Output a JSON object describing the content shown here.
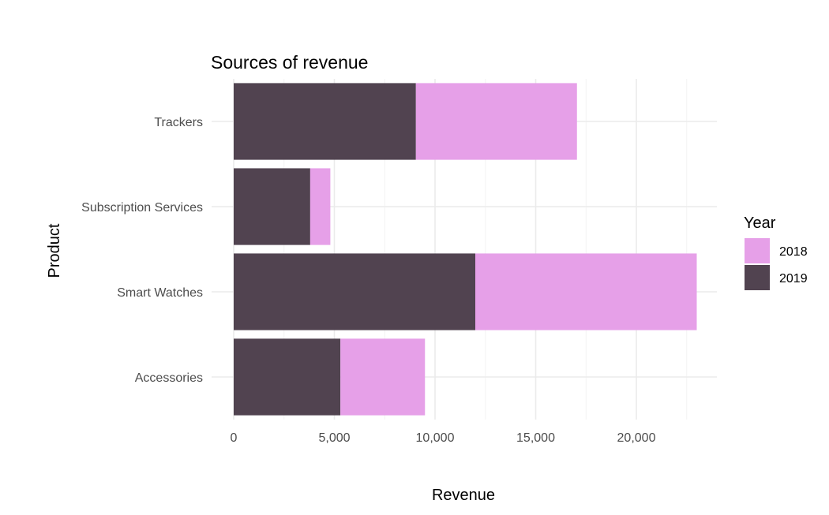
{
  "chart_data": {
    "type": "bar",
    "orientation": "horizontal",
    "stacked": true,
    "title": "Sources of revenue",
    "xlabel": "Revenue",
    "ylabel": "Product",
    "categories": [
      "Accessories",
      "Smart Watches",
      "Subscription Services",
      "Trackers"
    ],
    "series": [
      {
        "name": "2019",
        "color": "#514350",
        "values": [
          5300,
          12000,
          3800,
          9050
        ]
      },
      {
        "name": "2018",
        "color": "#e6a0e8",
        "values": [
          4200,
          11000,
          1000,
          8000
        ]
      }
    ],
    "xlim": [
      0,
      24000
    ],
    "xticks": [
      0,
      5000,
      10000,
      15000,
      20000
    ],
    "xtick_labels": [
      "0",
      "5,000",
      "10,000",
      "15,000",
      "20,000"
    ],
    "grid": true,
    "legend": {
      "title": "Year",
      "position": "right",
      "entries": [
        "2018",
        "2019"
      ]
    }
  }
}
